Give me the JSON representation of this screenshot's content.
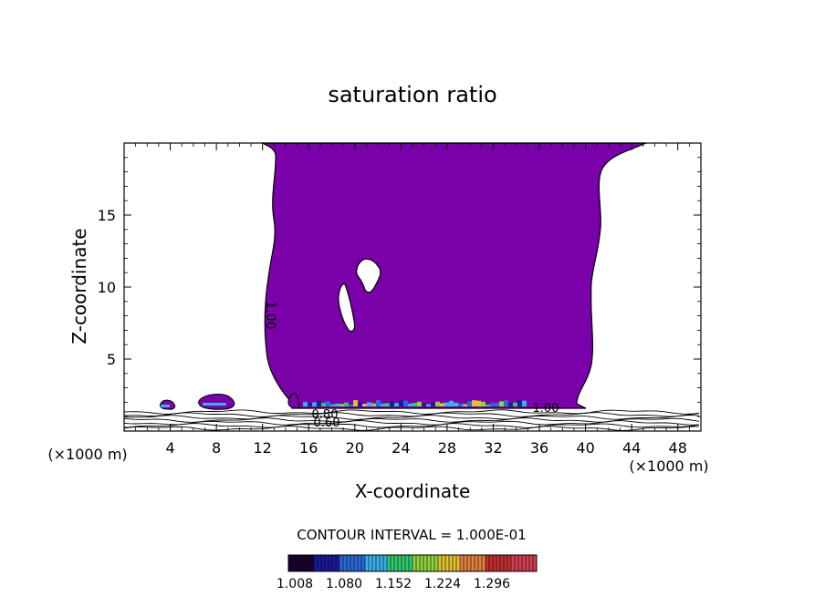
{
  "chart_data": {
    "type": "contour",
    "title": "saturation ratio",
    "xlabel": "X-coordinate",
    "ylabel": "Z-coordinate",
    "x_unit_label_left": "(×1000 m)",
    "x_unit_label_right": "(×1000 m)",
    "xlim": [
      0,
      50
    ],
    "ylim": [
      0,
      20
    ],
    "x_ticks": [
      4,
      8,
      12,
      16,
      20,
      24,
      28,
      32,
      36,
      40,
      44,
      48
    ],
    "y_ticks": [
      5,
      10,
      15
    ],
    "contour_labels": [
      "1.00",
      "0.80",
      "0.60",
      "1.00"
    ],
    "contour_interval_text": "CONTOUR INTERVAL = 1.000E-01",
    "colorbar_labels": [
      "1.008",
      "1.080",
      "1.152",
      "1.224",
      "1.296"
    ],
    "colors": {
      "fill": "#7a00aa",
      "colormap": [
        "#1a0030",
        "#1a1a9a",
        "#2a6ad8",
        "#3ab0e8",
        "#30c870",
        "#90d040",
        "#e0c030",
        "#e08040",
        "#c03030",
        "#d04050"
      ]
    }
  }
}
